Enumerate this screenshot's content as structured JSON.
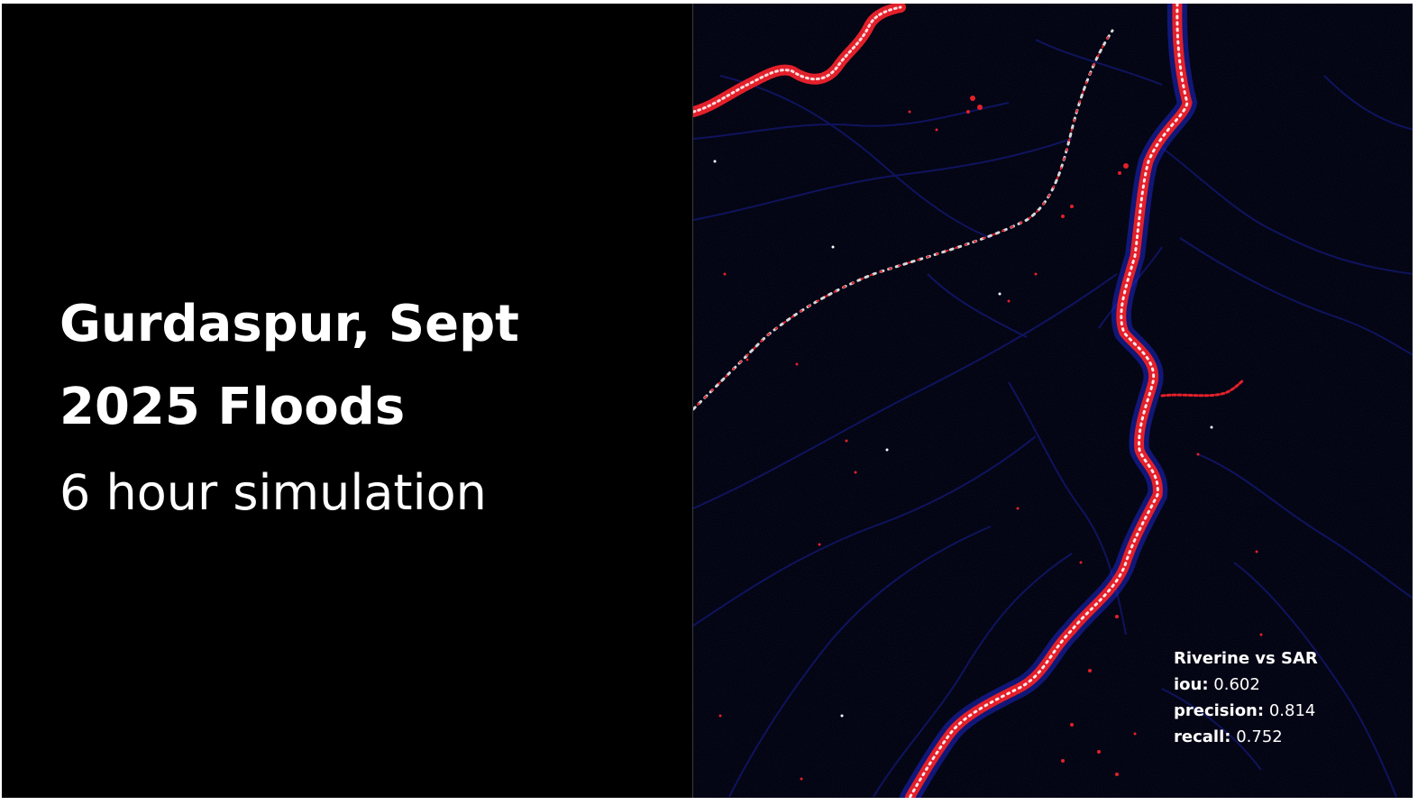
{
  "slide": {
    "title_line1": "Gurdaspur, Sept",
    "title_line2": "2025 Floods",
    "subtitle": "6 hour simulation"
  },
  "map": {
    "description_colors": {
      "background": "#02030f",
      "channel_network": "#14186b",
      "flood_predicted": "#e8222b",
      "flood_observed": "#ffffff",
      "sar_only": "#1d2ad8"
    },
    "metrics": {
      "heading": "Riverine vs SAR",
      "iou_label": "iou:",
      "iou_value": "0.602",
      "precision_label": "precision:",
      "precision_value": "0.814",
      "recall_label": "recall:",
      "recall_value": "0.752"
    }
  }
}
